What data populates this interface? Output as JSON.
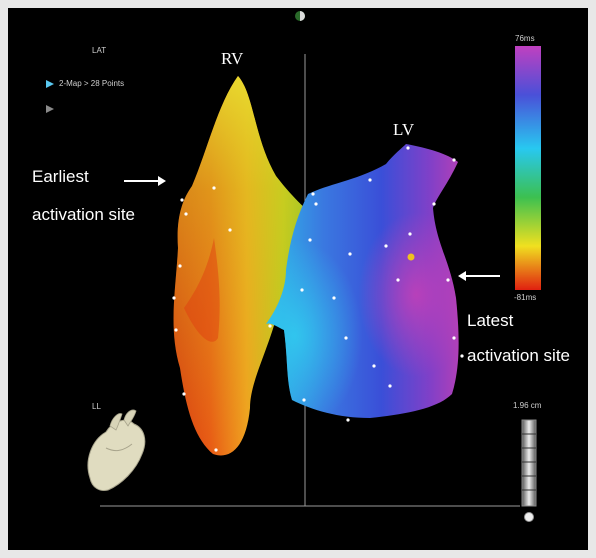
{
  "viewer": {
    "map_label": "LAT",
    "map_item": "2-Map > 28 Points",
    "orientation_label": "LL"
  },
  "labels": {
    "rv": "RV",
    "lv": "LV",
    "earliest_line1": "Earliest",
    "earliest_line2": "activation site",
    "latest_line1": "Latest",
    "latest_line2": "activation site"
  },
  "color_scale": {
    "max_label": "76ms",
    "min_label": "-81ms",
    "colors": [
      "#b040b8",
      "#3a4fd8",
      "#28c8f0",
      "#3cc050",
      "#f0e020",
      "#e02010"
    ]
  },
  "scale_bar": {
    "label": "1.96 cm"
  }
}
